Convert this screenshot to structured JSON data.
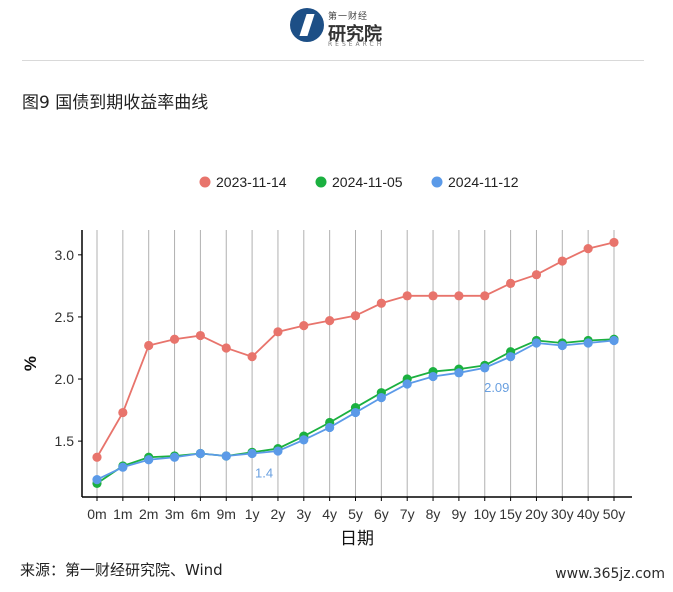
{
  "header": {
    "logo_small": "第一财经",
    "logo_main": "研究院",
    "logo_sub": "RESEARCH"
  },
  "figure_title": "图9 国债到期收益率曲线",
  "source": "来源：第一财经研究院、Wind",
  "watermark": "www.365jz.com",
  "colors": {
    "series1": "#e8746c",
    "series2": "#1bb040",
    "series3": "#5b9ae8",
    "axis": "#000000",
    "grid": "#b0b0b0",
    "label_blue": "#6aa0e0"
  },
  "chart_data": {
    "type": "line",
    "title": "",
    "xlabel": "日期",
    "ylabel": "%",
    "ylim": [
      1.05,
      3.2
    ],
    "yticks": [
      1.5,
      2.0,
      2.5,
      3.0
    ],
    "ytick_labels": [
      "1.5",
      "2.0",
      "2.5",
      "3.0"
    ],
    "grid": "vertical",
    "legend_position": "top",
    "categories": [
      "0m",
      "1m",
      "2m",
      "3m",
      "6m",
      "9m",
      "1y",
      "2y",
      "3y",
      "4y",
      "5y",
      "6y",
      "7y",
      "8y",
      "9y",
      "10y",
      "15y",
      "20y",
      "30y",
      "40y",
      "50y"
    ],
    "series": [
      {
        "name": "2023-11-14",
        "values": [
          1.37,
          1.73,
          2.27,
          2.32,
          2.35,
          2.25,
          2.18,
          2.38,
          2.43,
          2.47,
          2.51,
          2.61,
          2.67,
          2.67,
          2.67,
          2.67,
          2.77,
          2.84,
          2.95,
          3.05,
          3.1
        ]
      },
      {
        "name": "2024-11-05",
        "values": [
          1.16,
          1.3,
          1.37,
          1.38,
          1.4,
          1.38,
          1.41,
          1.44,
          1.54,
          1.65,
          1.77,
          1.89,
          2.0,
          2.06,
          2.08,
          2.11,
          2.22,
          2.31,
          2.29,
          2.31,
          2.32
        ]
      },
      {
        "name": "2024-11-12",
        "values": [
          1.19,
          1.29,
          1.35,
          1.37,
          1.4,
          1.38,
          1.4,
          1.42,
          1.51,
          1.61,
          1.73,
          1.85,
          1.96,
          2.02,
          2.05,
          2.09,
          2.18,
          2.29,
          2.27,
          2.29,
          2.31
        ]
      }
    ],
    "data_labels": [
      {
        "category": "1y",
        "text": "1.4"
      },
      {
        "category": "10y",
        "text": "2.09"
      }
    ]
  }
}
